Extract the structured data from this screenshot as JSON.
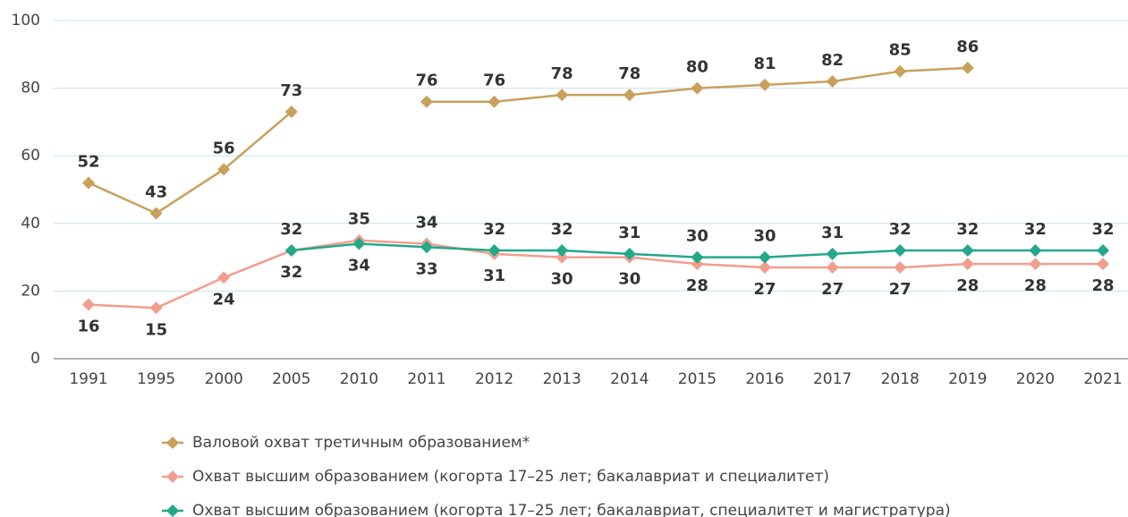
{
  "chart_data": {
    "type": "line",
    "categories": [
      "1991",
      "1995",
      "2000",
      "2005",
      "2010",
      "2011",
      "2012",
      "2013",
      "2014",
      "2015",
      "2016",
      "2017",
      "2018",
      "2019",
      "2020",
      "2021"
    ],
    "series": [
      {
        "name": "Валовой охват третичным образованием*",
        "color": "#c9a05c",
        "values": [
          52,
          43,
          56,
          73,
          null,
          76,
          76,
          78,
          78,
          80,
          81,
          82,
          85,
          86,
          null,
          null
        ]
      },
      {
        "name": "Охват высшим образованием (когорта 17–25 лет; бакалавриат и специалитет)",
        "color": "#f29e8e",
        "values": [
          16,
          15,
          24,
          32,
          35,
          34,
          31,
          30,
          30,
          28,
          27,
          27,
          27,
          28,
          28,
          28
        ]
      },
      {
        "name": "Охват высшим образованием (когорта 17–25 лет; бакалавриат, специалитет и магистратура)",
        "color": "#23a889",
        "values": [
          null,
          null,
          null,
          32,
          34,
          33,
          32,
          32,
          31,
          30,
          30,
          31,
          32,
          32,
          32,
          32
        ]
      }
    ],
    "ylim": [
      0,
      100
    ],
    "yticks": [
      0,
      20,
      40,
      60,
      80,
      100
    ],
    "grid": true
  }
}
